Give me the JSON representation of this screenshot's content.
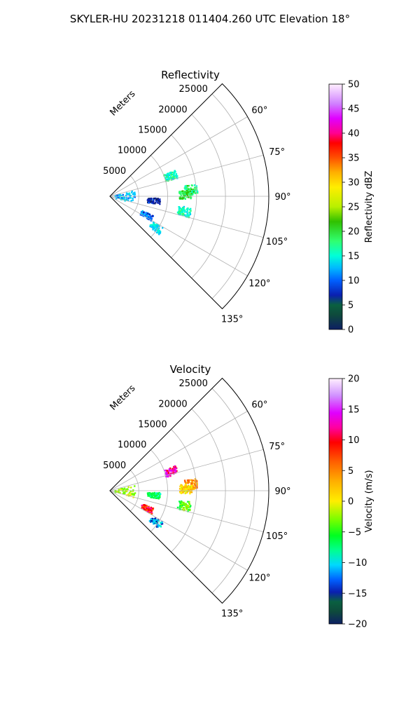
{
  "suptitle": "SKYLER-HU  20231218  011404.260 UTC Elevation 18°",
  "chart_data": [
    {
      "type": "polar-sector",
      "title": "Reflectivity",
      "range_axis_label": "Meters",
      "range_ticks": [
        "5000",
        "10000",
        "15000",
        "20000",
        "25000"
      ],
      "range_values": [
        5000,
        10000,
        15000,
        20000,
        25000
      ],
      "azimuth_ticks": [
        "60°",
        "75°",
        "90°",
        "105°",
        "120°",
        "135°"
      ],
      "azimuth_values": [
        60,
        75,
        90,
        105,
        120,
        135
      ],
      "azimuth_range": [
        45,
        135
      ],
      "grid": true,
      "colorbar": {
        "label": "Reflectivity dBZ",
        "range": [
          0,
          50
        ],
        "ticks": [
          "0",
          "5",
          "10",
          "15",
          "20",
          "25",
          "30",
          "35",
          "40",
          "45",
          "50"
        ]
      },
      "echoes": [
        {
          "azimuth": 71,
          "range": 11000,
          "value": 16
        },
        {
          "azimuth": 85,
          "range": 14000,
          "value": 18
        },
        {
          "azimuth": 88,
          "range": 13000,
          "value": 20
        },
        {
          "azimuth": 101,
          "range": 13000,
          "value": 16
        },
        {
          "azimuth": 90,
          "range": 2500,
          "value": 12
        },
        {
          "azimuth": 95,
          "range": 7500,
          "value": 6
        },
        {
          "azimuth": 117,
          "range": 7000,
          "value": 10
        },
        {
          "azimuth": 124,
          "range": 9500,
          "value": 14
        }
      ]
    },
    {
      "type": "polar-sector",
      "title": "Velocity",
      "range_axis_label": "Meters",
      "range_ticks": [
        "5000",
        "10000",
        "15000",
        "20000",
        "25000"
      ],
      "range_values": [
        5000,
        10000,
        15000,
        20000,
        25000
      ],
      "azimuth_ticks": [
        "60°",
        "75°",
        "90°",
        "105°",
        "120°",
        "135°"
      ],
      "azimuth_values": [
        60,
        75,
        90,
        105,
        120,
        135
      ],
      "azimuth_range": [
        45,
        135
      ],
      "grid": true,
      "colorbar": {
        "label": "Velocity (m/s)",
        "range": [
          -20,
          20
        ],
        "ticks": [
          "−20",
          "−15",
          "−10",
          "−5",
          "0",
          "5",
          "10",
          "15",
          "20"
        ]
      },
      "echoes": [
        {
          "azimuth": 72,
          "range": 11000,
          "value": 14
        },
        {
          "azimuth": 85,
          "range": 14000,
          "value": 6
        },
        {
          "azimuth": 88,
          "range": 13000,
          "value": 2
        },
        {
          "azimuth": 101,
          "range": 13000,
          "value": -4
        },
        {
          "azimuth": 90,
          "range": 2500,
          "value": -2
        },
        {
          "azimuth": 95,
          "range": 7500,
          "value": -8
        },
        {
          "azimuth": 115,
          "range": 7000,
          "value": 10
        },
        {
          "azimuth": 124,
          "range": 9500,
          "value": -12
        }
      ]
    }
  ]
}
